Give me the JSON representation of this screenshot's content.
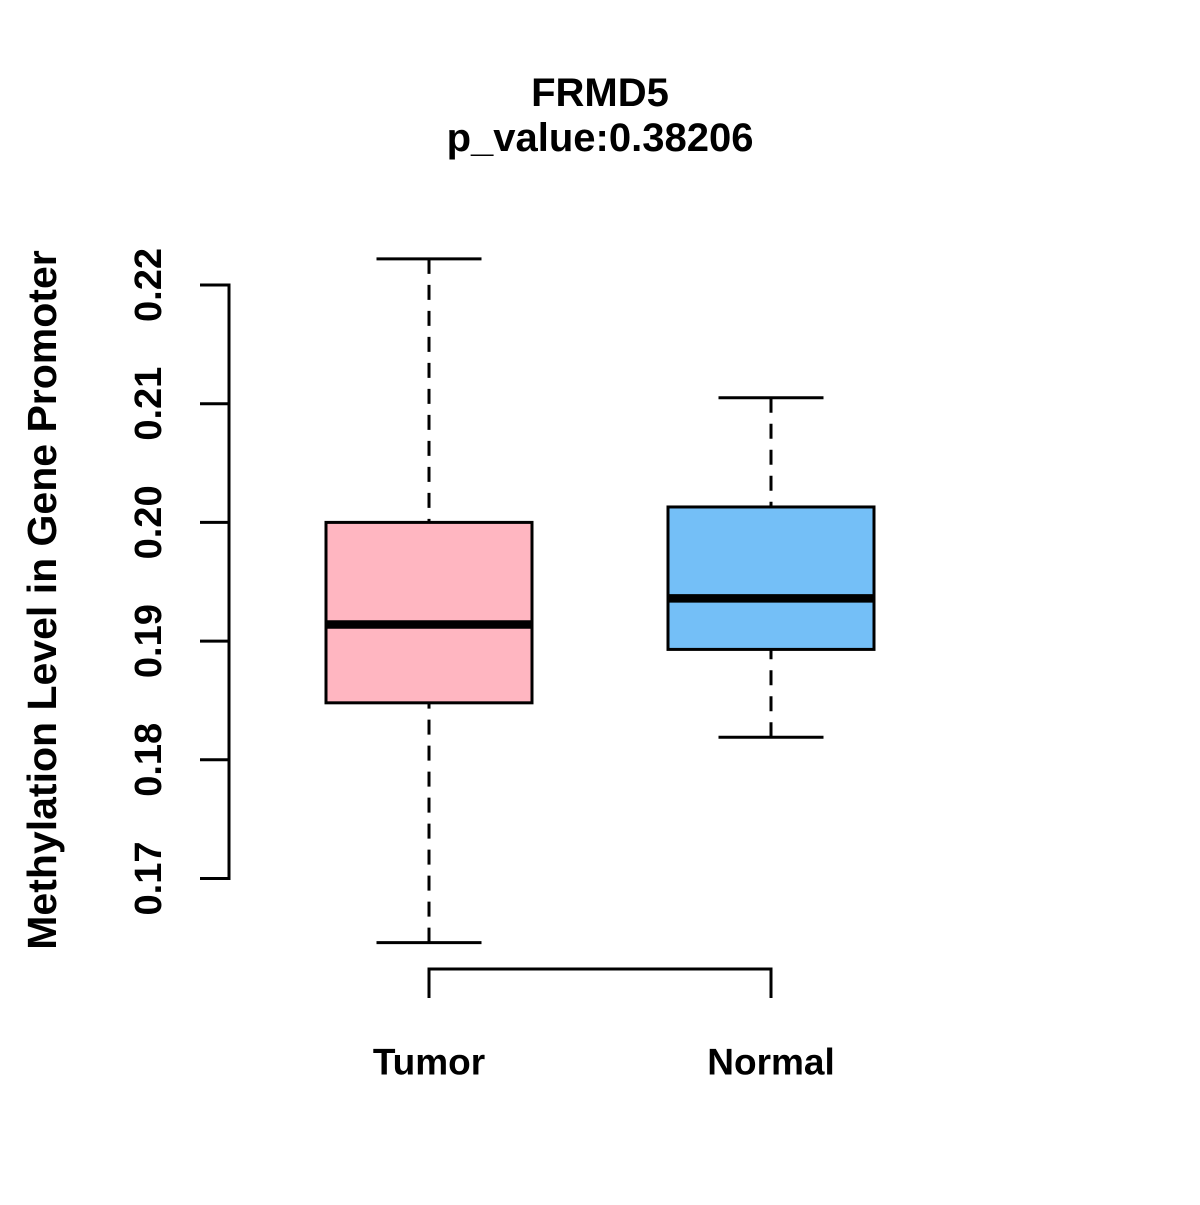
{
  "chart_data": {
    "type": "boxplot",
    "title": "FRMD5",
    "subtitle": "p_value:0.38206",
    "ylabel": "Methylation Level in Gene Promoter",
    "xlabel": "",
    "categories": [
      "Tumor",
      "Normal"
    ],
    "y_axis": {
      "min": 0.17,
      "max": 0.22,
      "tick_labels": [
        "0.22",
        "0.21",
        "0.20",
        "0.19",
        "0.18",
        "0.17"
      ]
    },
    "grid": false,
    "legend": "none",
    "series": [
      {
        "name": "Tumor",
        "fill_color": "#FFB6C1",
        "stroke_color": "#000000",
        "lower_whisker": 0.1646,
        "q1": 0.1848,
        "median": 0.1914,
        "q3": 0.2,
        "upper_whisker": 0.2222,
        "outliers": []
      },
      {
        "name": "Normal",
        "fill_color": "#74BFF7",
        "stroke_color": "#000000",
        "lower_whisker": 0.1819,
        "q1": 0.1893,
        "median": 0.1936,
        "q3": 0.2013,
        "upper_whisker": 0.2105,
        "outliers": []
      }
    ]
  }
}
